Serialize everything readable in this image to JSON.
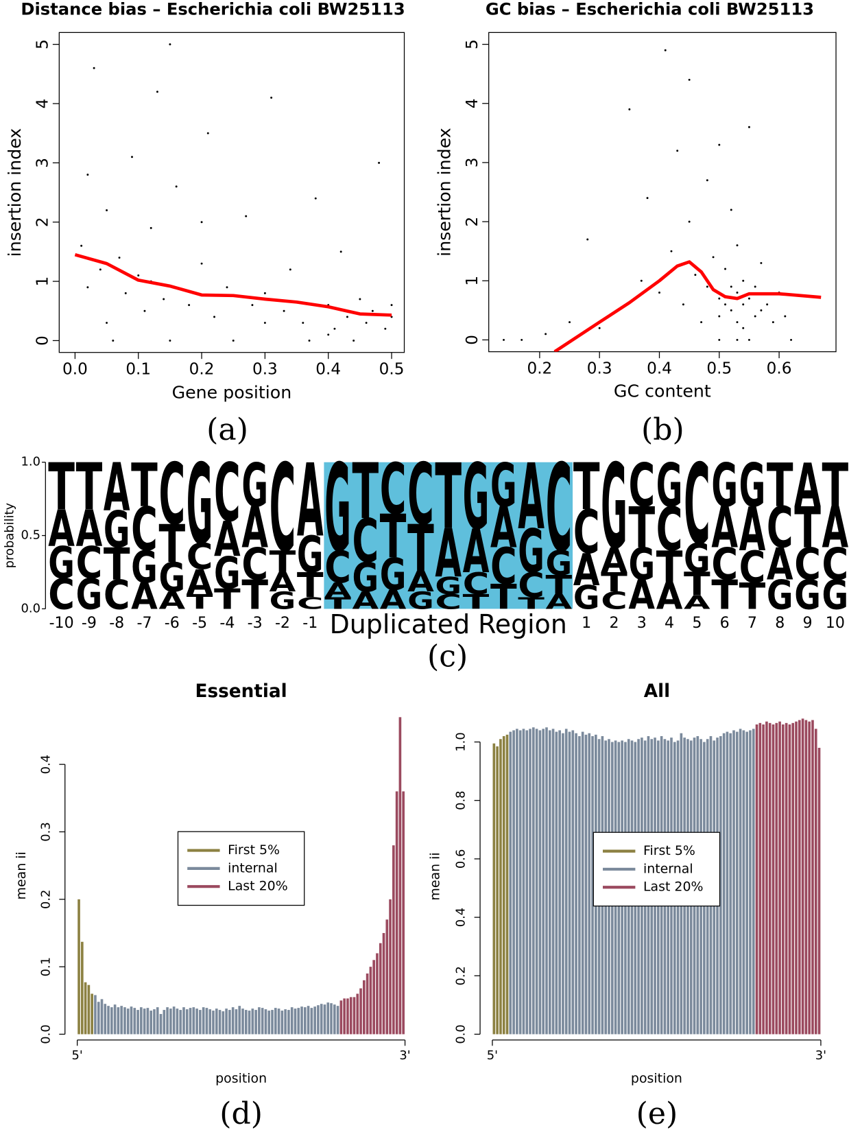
{
  "chart_data": [
    {
      "type": "scatter",
      "panel_label": "(a)",
      "title": "Distance bias – Escherichia coli BW25113",
      "xlabel": "Gene position",
      "ylabel": "insertion index",
      "xlim": [
        -0.025,
        0.52
      ],
      "ylim": [
        -0.2,
        5.2
      ],
      "xticks": [
        {
          "value": 0,
          "label": "0.0"
        },
        0.1,
        0.2,
        0.3,
        0.4,
        0.5
      ],
      "yticks": [
        0,
        1,
        2,
        3,
        4,
        5
      ],
      "points": {
        "color": "#000000",
        "x": [
          0.01,
          0.02,
          0.03,
          0.04,
          0.05,
          0.06,
          0.07,
          0.08,
          0.09,
          0.1,
          0.11,
          0.12,
          0.13,
          0.14,
          0.15,
          0.16,
          0.18,
          0.2,
          0.21,
          0.22,
          0.24,
          0.25,
          0.27,
          0.28,
          0.3,
          0.31,
          0.33,
          0.34,
          0.36,
          0.37,
          0.38,
          0.4,
          0.41,
          0.42,
          0.43,
          0.44,
          0.45,
          0.46,
          0.47,
          0.48,
          0.49,
          0.5,
          0.02,
          0.05,
          0.12,
          0.2,
          0.3,
          0.4,
          0.5,
          0.15
        ],
        "y": [
          1.6,
          0.9,
          4.6,
          1.2,
          2.2,
          0,
          1.4,
          0.8,
          3.1,
          1.1,
          0.5,
          1.9,
          4.2,
          0.7,
          0,
          2.6,
          0.6,
          1.3,
          3.5,
          0.4,
          0.9,
          0,
          2.1,
          0.6,
          0.8,
          4.1,
          0.5,
          1.2,
          0.3,
          0,
          2.4,
          0.6,
          0.2,
          1.5,
          0.4,
          0,
          0.7,
          0.3,
          0.5,
          3.0,
          0.2,
          0.4,
          2.8,
          0.3,
          1.0,
          2.0,
          0.3,
          0.1,
          0.6,
          5.0
        ]
      },
      "trend": {
        "color": "#ff0000",
        "x": [
          0,
          0.05,
          0.1,
          0.15,
          0.2,
          0.25,
          0.3,
          0.35,
          0.4,
          0.45,
          0.5
        ],
        "values": [
          1.45,
          1.3,
          1.02,
          0.92,
          0.77,
          0.76,
          0.7,
          0.65,
          0.57,
          0.45,
          0.43
        ]
      }
    },
    {
      "type": "scatter",
      "panel_label": "(b)",
      "title": "GC bias – Escherichia coli BW25113",
      "xlabel": "GC content",
      "ylabel": "insertion index",
      "xlim": [
        0.115,
        0.695
      ],
      "ylim": [
        -0.2,
        5.2
      ],
      "xticks": [
        0.2,
        0.3,
        0.4,
        0.5,
        0.6
      ],
      "yticks": [
        0,
        1,
        2,
        3,
        4,
        5
      ],
      "points": {
        "color": "#000000",
        "x": [
          0.14,
          0.17,
          0.21,
          0.25,
          0.28,
          0.3,
          0.33,
          0.35,
          0.37,
          0.38,
          0.4,
          0.41,
          0.42,
          0.43,
          0.44,
          0.45,
          0.45,
          0.46,
          0.47,
          0.48,
          0.48,
          0.49,
          0.5,
          0.5,
          0.5,
          0.51,
          0.51,
          0.52,
          0.52,
          0.52,
          0.53,
          0.53,
          0.53,
          0.54,
          0.54,
          0.54,
          0.55,
          0.55,
          0.56,
          0.56,
          0.57,
          0.57,
          0.58,
          0.59,
          0.6,
          0.61,
          0.62,
          0.5,
          0.53,
          0.55
        ],
        "y": [
          0,
          0,
          0.1,
          0.3,
          1.7,
          0.2,
          0.5,
          3.9,
          1.0,
          2.4,
          0.8,
          4.9,
          1.5,
          3.2,
          0.6,
          2.0,
          4.4,
          1.1,
          0.3,
          2.7,
          0.9,
          1.4,
          0.7,
          3.3,
          0.4,
          0.6,
          1.2,
          0.5,
          0.9,
          2.2,
          0.3,
          0.8,
          1.6,
          0.6,
          0.2,
          1.0,
          0.7,
          3.6,
          0.4,
          0.9,
          0.5,
          1.3,
          0.6,
          0.3,
          0.8,
          0.4,
          0,
          0,
          0,
          0
        ]
      },
      "trend": {
        "color": "#ff0000",
        "x": [
          0.225,
          0.3,
          0.35,
          0.4,
          0.43,
          0.45,
          0.47,
          0.49,
          0.51,
          0.53,
          0.55,
          0.6,
          0.67
        ],
        "values": [
          -0.2,
          0.3,
          0.63,
          1.0,
          1.25,
          1.32,
          1.15,
          0.85,
          0.73,
          0.7,
          0.78,
          0.78,
          0.72
        ]
      }
    },
    {
      "type": "logo",
      "panel_label": "(c)",
      "ylabel": "probability",
      "ylim": [
        0,
        1
      ],
      "yticks": [
        {
          "value": 0,
          "label": "0.0"
        },
        {
          "value": 0.5,
          "label": "0.5"
        },
        {
          "value": 1,
          "label": "1.0"
        }
      ],
      "categories": [
        "-10",
        "-9",
        "-8",
        "-7",
        "-6",
        "-5",
        "-4",
        "-3",
        "-2",
        "-1",
        null,
        null,
        null,
        null,
        null,
        null,
        null,
        null,
        null,
        "1",
        "2",
        "3",
        "4",
        "5",
        "6",
        "7",
        "8",
        "9",
        "10"
      ],
      "highlight": {
        "label": "Duplicated Region",
        "color": "#5fbfdc",
        "letter_colors": {
          "A": "#7c9e92",
          "C": "#2f80e0",
          "G": "#2f80e0",
          "T": "#7c9e92"
        }
      },
      "series": [
        {
          "name": "A",
          "color": "#f7901e",
          "values": [
            0.25,
            0.25,
            0.33,
            0.18,
            0.12,
            0.17,
            0.24,
            0.28,
            0.13,
            0.5,
            0.1,
            0.12,
            0.13,
            0.14,
            0.33,
            0.3,
            0.28,
            0.45,
            0.1,
            0.22,
            0.17,
            0.2,
            0.18,
            0.09,
            0.28,
            0.3,
            0.22,
            0.3,
            0.28
          ]
        },
        {
          "name": "C",
          "color": "#1515e0",
          "values": [
            0.21,
            0.22,
            0.2,
            0.3,
            0.42,
            0.18,
            0.4,
            0.22,
            0.6,
            0.08,
            0.22,
            0.3,
            0.35,
            0.42,
            0.1,
            0.15,
            0.25,
            0.17,
            0.6,
            0.3,
            0.12,
            0.3,
            0.3,
            0.55,
            0.22,
            0.22,
            0.28,
            0.22,
            0.22
          ]
        },
        {
          "name": "G",
          "color": "#1515e0",
          "values": [
            0.22,
            0.21,
            0.25,
            0.22,
            0.2,
            0.55,
            0.22,
            0.3,
            0.12,
            0.25,
            0.6,
            0.2,
            0.22,
            0.12,
            0.12,
            0.45,
            0.3,
            0.3,
            0.17,
            0.16,
            0.58,
            0.22,
            0.3,
            0.2,
            0.3,
            0.3,
            0.2,
            0.2,
            0.2
          ]
        },
        {
          "name": "T",
          "color": "#f7901e",
          "values": [
            0.32,
            0.32,
            0.22,
            0.3,
            0.26,
            0.1,
            0.14,
            0.2,
            0.15,
            0.17,
            0.08,
            0.38,
            0.3,
            0.32,
            0.45,
            0.1,
            0.17,
            0.08,
            0.13,
            0.32,
            0.13,
            0.28,
            0.22,
            0.16,
            0.2,
            0.18,
            0.3,
            0.28,
            0.3
          ]
        }
      ]
    },
    {
      "type": "bar",
      "panel_label": "(d)",
      "title": "Essential",
      "xlabel": "position",
      "ylabel": "mean ii",
      "legend": "center",
      "xlim": [
        0.5,
        100.5
      ],
      "ylim": [
        0,
        0.47
      ],
      "xticks": [
        {
          "value": 0.5,
          "label": "5'"
        },
        {
          "value": 100.5,
          "label": "3'"
        }
      ],
      "yticks": [
        {
          "value": 0,
          "label": "0.0"
        },
        0.1,
        0.2,
        0.3,
        0.4
      ],
      "series": [
        {
          "name": "First 5%",
          "color": "#8c8142",
          "values": [
            0.2,
            0.137,
            0.077,
            0.073,
            0.06
          ]
        },
        {
          "name": "internal",
          "color": "#7b8a9c",
          "values": [
            0.058,
            0.048,
            0.052,
            0.045,
            0.042,
            0.04,
            0.044,
            0.04,
            0.042,
            0.04,
            0.038,
            0.041,
            0.039,
            0.036,
            0.04,
            0.038,
            0.039,
            0.035,
            0.037,
            0.04,
            0.03,
            0.036,
            0.04,
            0.038,
            0.041,
            0.038,
            0.036,
            0.04,
            0.037,
            0.039,
            0.04,
            0.038,
            0.036,
            0.04,
            0.039,
            0.037,
            0.035,
            0.038,
            0.036,
            0.034,
            0.038,
            0.036,
            0.04,
            0.037,
            0.042,
            0.038,
            0.036,
            0.035,
            0.038,
            0.036,
            0.04,
            0.039,
            0.037,
            0.035,
            0.036,
            0.039,
            0.038,
            0.035,
            0.037,
            0.036,
            0.04,
            0.038,
            0.039,
            0.041,
            0.04,
            0.042,
            0.039,
            0.041,
            0.043,
            0.045,
            0.044,
            0.047,
            0.046,
            0.044,
            0.042
          ]
        },
        {
          "name": "Last 20%",
          "color": "#9b4a5f",
          "values": [
            0.05,
            0.053,
            0.053,
            0.055,
            0.055,
            0.06,
            0.068,
            0.08,
            0.09,
            0.1,
            0.11,
            0.12,
            0.135,
            0.15,
            0.17,
            0.2,
            0.28,
            0.36,
            0.47,
            0.36
          ]
        }
      ]
    },
    {
      "type": "bar",
      "panel_label": "(e)",
      "title": "All",
      "xlabel": "position",
      "ylabel": "mean ii",
      "legend": "center",
      "xlim": [
        0.5,
        100.5
      ],
      "ylim": [
        0,
        1.08
      ],
      "xticks": [
        {
          "value": 0.5,
          "label": "5'"
        },
        {
          "value": 100.5,
          "label": "3'"
        }
      ],
      "yticks": [
        {
          "value": 0,
          "label": "0.0"
        },
        0.2,
        0.4,
        0.6,
        0.8,
        {
          "value": 1,
          "label": "1.0"
        }
      ],
      "series": [
        {
          "name": "First 5%",
          "color": "#8c8142",
          "values": [
            0.995,
            0.985,
            1.01,
            1.02,
            1.025
          ]
        },
        {
          "name": "internal",
          "color": "#7b8a9c",
          "values": [
            1.035,
            1.04,
            1.045,
            1.04,
            1.045,
            1.04,
            1.045,
            1.05,
            1.045,
            1.04,
            1.045,
            1.05,
            1.04,
            1.045,
            1.035,
            1.04,
            1.03,
            1.045,
            1.035,
            1.04,
            1.03,
            1.02,
            1.035,
            1.025,
            1.03,
            1.02,
            1.025,
            1.01,
            1.02,
            1.005,
            1.01,
            1.0,
            1.005,
            1.0,
            1.005,
            1.0,
            1.01,
            1.005,
            1.0,
            1.01,
            1.015,
            1.005,
            1.02,
            1.01,
            1.015,
            1.005,
            1.02,
            1.01,
            1.005,
            1.015,
            1.0,
            1.005,
            1.03,
            1.015,
            1.01,
            1.005,
            1.015,
            1.02,
            1.01,
            1.0,
            1.01,
            1.02,
            1.005,
            1.015,
            1.02,
            1.03,
            1.035,
            1.03,
            1.04,
            1.035,
            1.045,
            1.04,
            1.035,
            1.04,
            1.045
          ]
        },
        {
          "name": "Last 20%",
          "color": "#9b4a5f",
          "values": [
            1.06,
            1.065,
            1.06,
            1.07,
            1.065,
            1.06,
            1.065,
            1.07,
            1.06,
            1.065,
            1.06,
            1.065,
            1.07,
            1.075,
            1.08,
            1.075,
            1.07,
            1.075,
            1.045,
            0.98
          ]
        }
      ]
    }
  ]
}
